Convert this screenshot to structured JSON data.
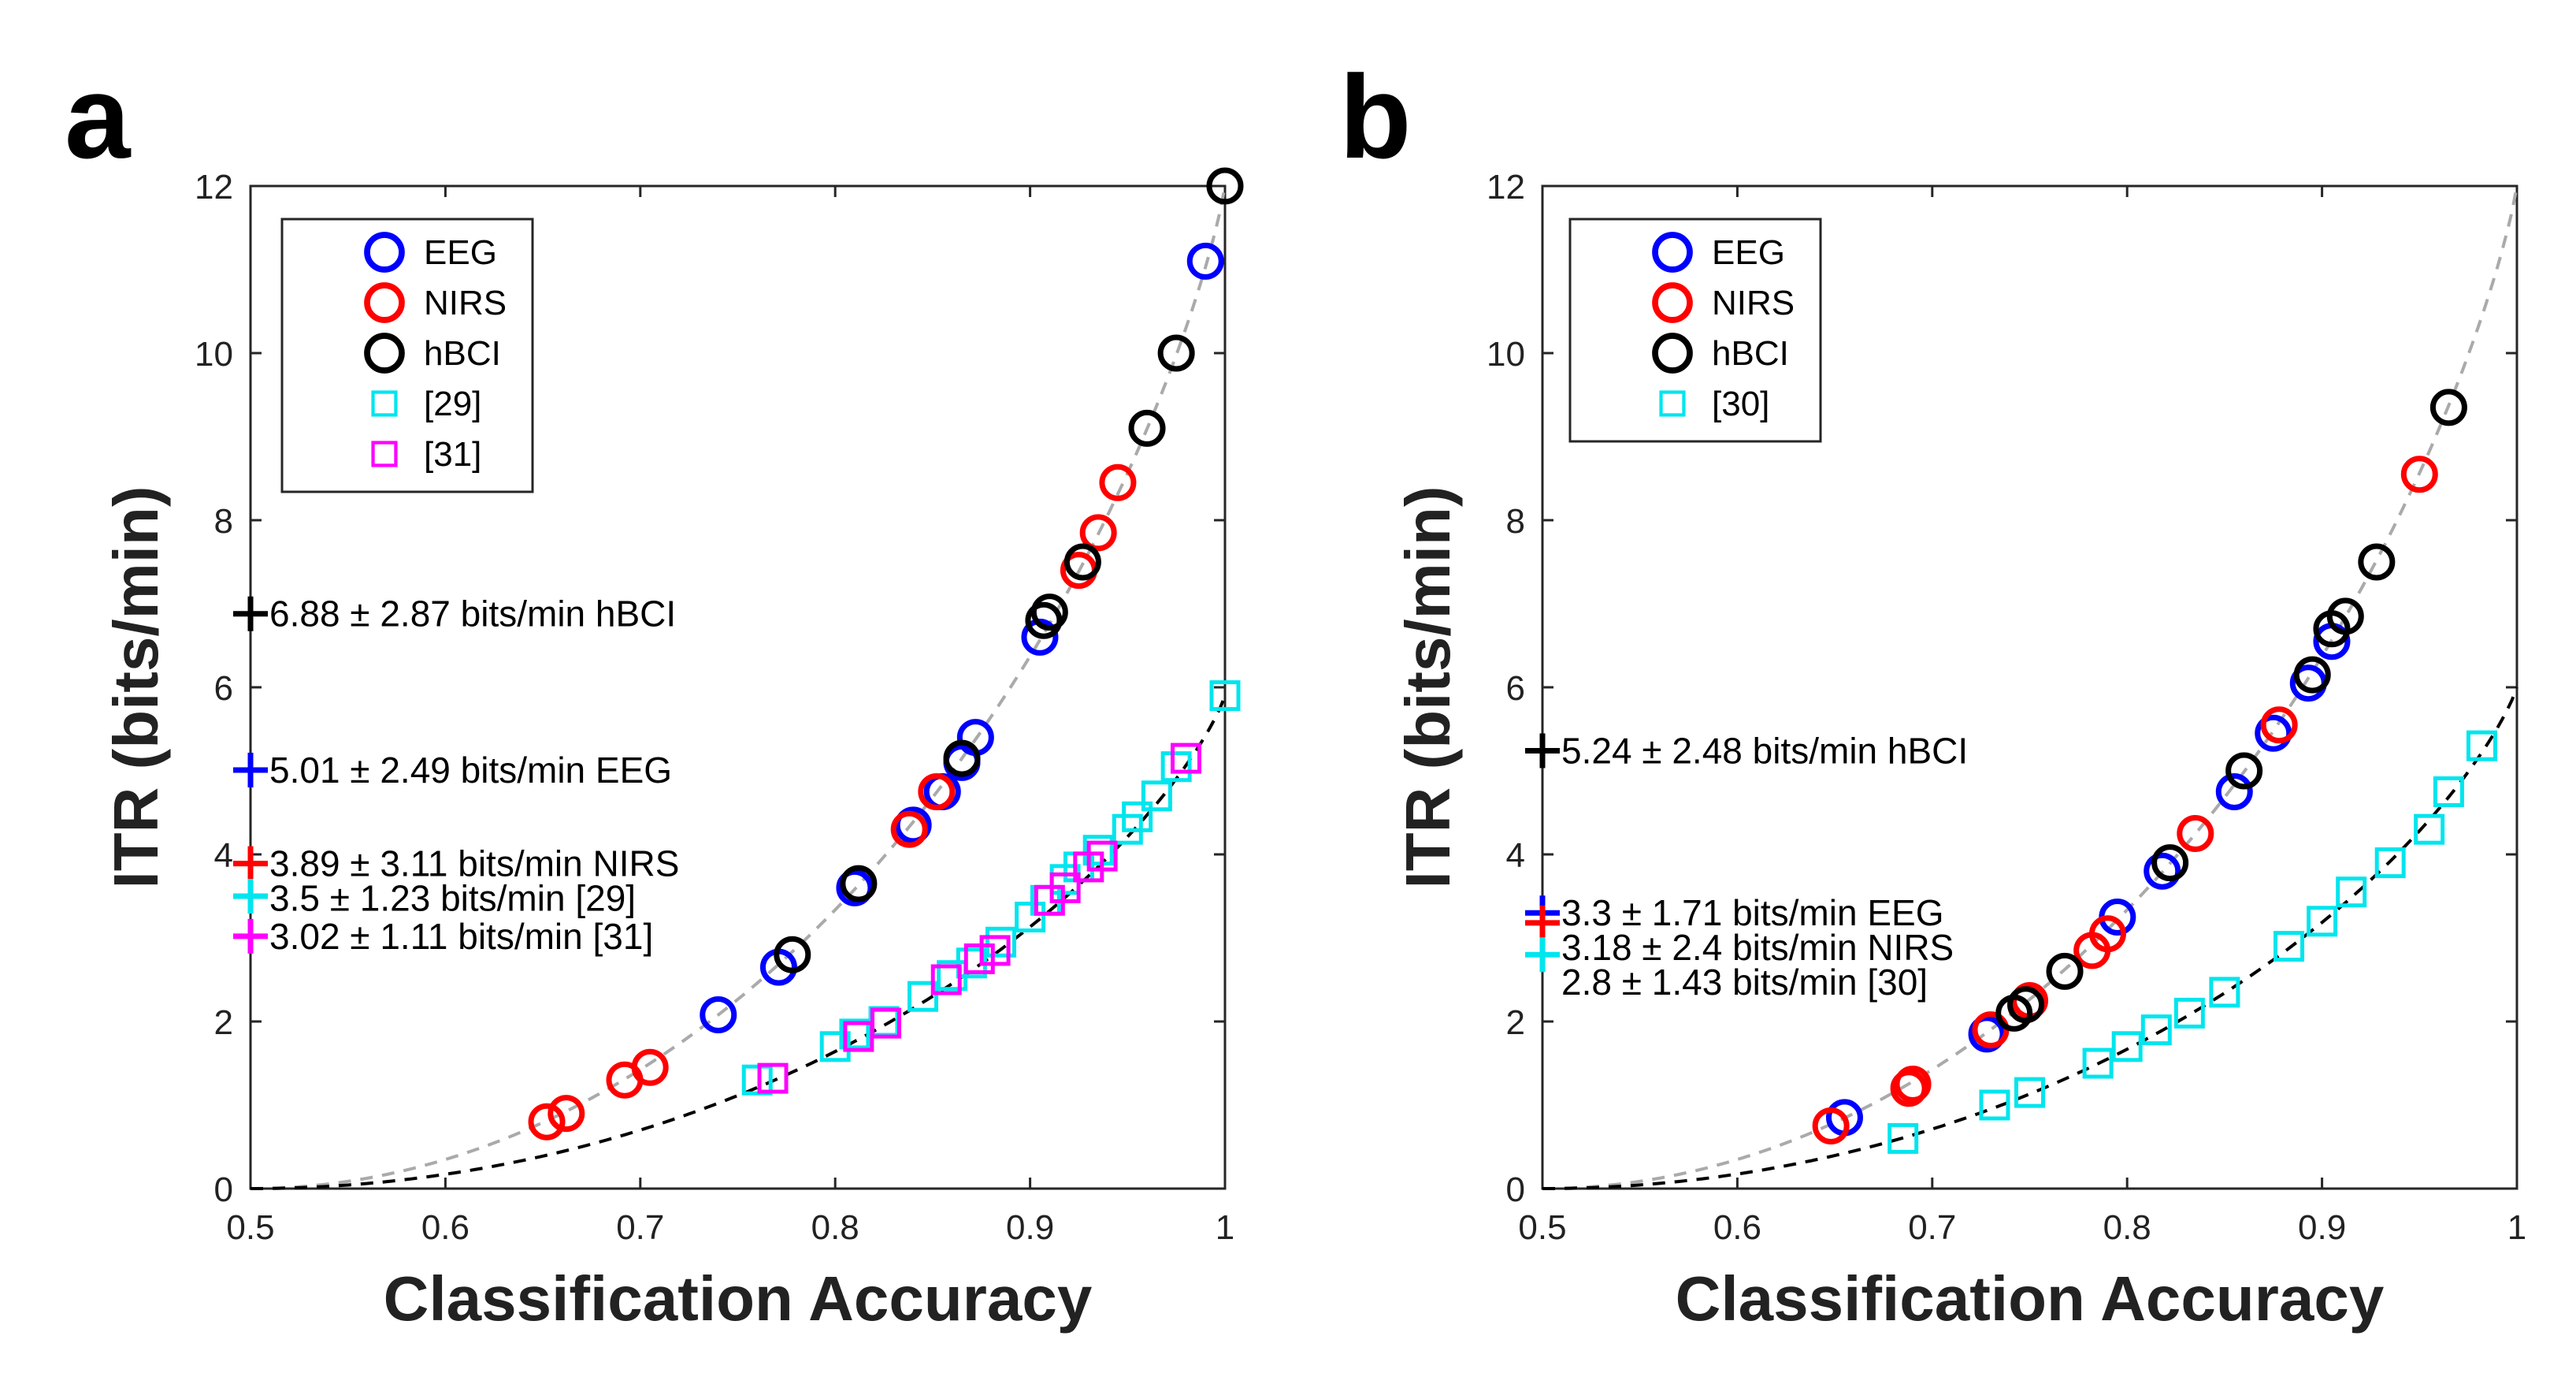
{
  "colors": {
    "EEG": "#0000ff",
    "NIRS": "#ff0000",
    "hBCI": "#000000",
    "ref29": "#00e5ee",
    "ref31": "#ff00ff",
    "ref30": "#00e5ee",
    "curve_upper": "#aaaaaa",
    "curve_lower": "#000000"
  },
  "chart_data": [
    {
      "type": "scatter",
      "panel_label": "a",
      "xlabel": "Classification Accuracy",
      "ylabel": "ITR (bits/min)",
      "xlim": [
        0.5,
        1
      ],
      "ylim": [
        0,
        12
      ],
      "xticks": [
        "0.5",
        "0.6",
        "0.7",
        "0.8",
        "0.9",
        "1"
      ],
      "yticks": [
        "0",
        "2",
        "4",
        "6",
        "8",
        "10",
        "12"
      ],
      "legend_position": "top-left",
      "curves": [
        {
          "name": "upper",
          "style": "dashed",
          "color_key": "curve_upper",
          "max_itr": 12
        },
        {
          "name": "lower",
          "style": "dashed",
          "color_key": "curve_lower",
          "max_itr": 5.9
        }
      ],
      "series": [
        {
          "name": "EEG",
          "label": "EEG",
          "marker": "circle",
          "color_key": "EEG",
          "x": [
            0.74,
            0.771,
            0.81,
            0.84,
            0.855,
            0.865,
            0.872,
            0.905,
            0.99
          ],
          "y": [
            2.08,
            2.65,
            3.6,
            4.35,
            4.75,
            5.1,
            5.4,
            6.6,
            11.1
          ]
        },
        {
          "name": "NIRS",
          "label": "NIRS",
          "marker": "circle",
          "color_key": "NIRS",
          "x": [
            0.652,
            0.662,
            0.692,
            0.705,
            0.838,
            0.852,
            0.925,
            0.935,
            0.945
          ],
          "y": [
            0.8,
            0.9,
            1.3,
            1.45,
            4.3,
            4.75,
            7.4,
            7.85,
            8.45
          ]
        },
        {
          "name": "hBCI",
          "label": "hBCI",
          "marker": "circle",
          "color_key": "hBCI",
          "x": [
            0.778,
            0.812,
            0.865,
            0.907,
            0.91,
            0.927,
            0.96,
            0.975,
            1.0
          ],
          "y": [
            2.8,
            3.65,
            5.15,
            6.8,
            6.9,
            7.5,
            9.1,
            10.0,
            12.0
          ]
        },
        {
          "name": "ref29",
          "label": "[29]",
          "marker": "square",
          "color_key": "ref29",
          "x": [
            0.76,
            0.8,
            0.81,
            0.825,
            0.845,
            0.86,
            0.87,
            0.885,
            0.9,
            0.908,
            0.918,
            0.925,
            0.935,
            0.95,
            0.955,
            0.965,
            0.975,
            1.0
          ],
          "y": [
            1.3,
            1.7,
            1.85,
            2.0,
            2.3,
            2.55,
            2.7,
            2.95,
            3.25,
            3.45,
            3.7,
            3.85,
            4.05,
            4.3,
            4.45,
            4.7,
            5.05,
            5.9
          ]
        },
        {
          "name": "ref31",
          "label": "[31]",
          "marker": "square",
          "color_key": "ref31",
          "x": [
            0.768,
            0.812,
            0.826,
            0.857,
            0.874,
            0.882,
            0.91,
            0.918,
            0.93,
            0.937,
            0.98
          ],
          "y": [
            1.32,
            1.82,
            1.98,
            2.5,
            2.75,
            2.85,
            3.45,
            3.6,
            3.85,
            3.98,
            5.15
          ]
        }
      ],
      "mean_markers": [
        {
          "y": 6.88,
          "color_key": "hBCI",
          "text": "6.88 ± 2.87 bits/min hBCI"
        },
        {
          "y": 5.01,
          "color_key": "EEG",
          "text": "5.01 ± 2.49 bits/min EEG"
        },
        {
          "y": 3.89,
          "color_key": "NIRS",
          "text": "3.89 ± 3.11 bits/min NIRS"
        },
        {
          "y": 3.5,
          "color_key": "ref29",
          "text": "3.5 ± 1.23 bits/min [29]"
        },
        {
          "y": 3.02,
          "color_key": "ref31",
          "text": "3.02 ± 1.11 bits/min [31]"
        }
      ]
    },
    {
      "type": "scatter",
      "panel_label": "b",
      "xlabel": "Classification Accuracy",
      "ylabel": "ITR (bits/min)",
      "xlim": [
        0.5,
        1
      ],
      "ylim": [
        0,
        12
      ],
      "xticks": [
        "0.5",
        "0.6",
        "0.7",
        "0.8",
        "0.9",
        "1"
      ],
      "yticks": [
        "0",
        "2",
        "4",
        "6",
        "8",
        "10",
        "12"
      ],
      "legend_position": "top-left",
      "curves": [
        {
          "name": "upper",
          "style": "dashed",
          "color_key": "curve_upper",
          "max_itr": 12
        },
        {
          "name": "lower",
          "style": "dashed",
          "color_key": "curve_lower",
          "max_itr": 6
        }
      ],
      "series": [
        {
          "name": "EEG",
          "label": "EEG",
          "marker": "circle",
          "color_key": "EEG",
          "x": [
            0.655,
            0.728,
            0.795,
            0.818,
            0.855,
            0.875,
            0.893,
            0.905
          ],
          "y": [
            0.85,
            1.85,
            3.25,
            3.8,
            4.75,
            5.45,
            6.05,
            6.55
          ]
        },
        {
          "name": "NIRS",
          "label": "NIRS",
          "marker": "circle",
          "color_key": "NIRS",
          "x": [
            0.648,
            0.688,
            0.69,
            0.73,
            0.75,
            0.782,
            0.79,
            0.835,
            0.878,
            0.95
          ],
          "y": [
            0.75,
            1.2,
            1.25,
            1.9,
            2.25,
            2.85,
            3.05,
            4.25,
            5.55,
            8.55
          ]
        },
        {
          "name": "hBCI",
          "label": "hBCI",
          "marker": "circle",
          "color_key": "hBCI",
          "x": [
            0.742,
            0.748,
            0.768,
            0.822,
            0.86,
            0.895,
            0.905,
            0.912,
            0.928,
            0.965
          ],
          "y": [
            2.1,
            2.2,
            2.6,
            3.9,
            5.0,
            6.15,
            6.7,
            6.85,
            7.5,
            9.35
          ]
        },
        {
          "name": "ref30",
          "label": "[30]",
          "marker": "square",
          "color_key": "ref30",
          "x": [
            0.685,
            0.732,
            0.75,
            0.785,
            0.8,
            0.815,
            0.832,
            0.85,
            0.883,
            0.9,
            0.915,
            0.935,
            0.955,
            0.965,
            0.982
          ],
          "y": [
            0.6,
            1.0,
            1.15,
            1.5,
            1.7,
            1.9,
            2.1,
            2.35,
            2.9,
            3.2,
            3.55,
            3.9,
            4.3,
            4.75,
            5.3
          ]
        }
      ],
      "mean_markers": [
        {
          "y": 5.24,
          "color_key": "hBCI",
          "text": "5.24 ± 2.48 bits/min hBCI"
        },
        {
          "y": 3.3,
          "color_key": "EEG",
          "text": "3.3 ± 1.71 bits/min EEG"
        },
        {
          "y": 3.18,
          "color_key": "NIRS",
          "text": "3.18 ± 2.4 bits/min NIRS"
        },
        {
          "y": 2.8,
          "color_key": "ref30",
          "text": "2.8 ± 1.43 bits/min [30]"
        }
      ]
    }
  ]
}
